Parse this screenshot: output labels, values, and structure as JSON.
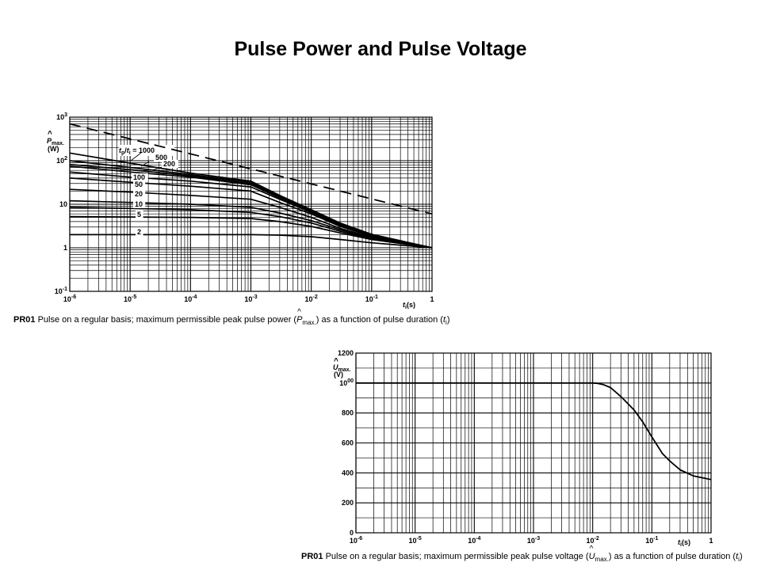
{
  "slide": {
    "title": "Pulse Power and Pulse Voltage"
  },
  "chart_data": [
    {
      "type": "line",
      "xscale": "log",
      "yscale": "log",
      "xlim": [
        1e-06,
        1
      ],
      "ylim": [
        0.1,
        1000
      ],
      "grid": true,
      "x_ticks": [
        "10-6",
        "10-5",
        "10-4",
        "10-3",
        "10-2",
        "10-1",
        "1"
      ],
      "y_ticks": [
        "10-1",
        "1",
        "10",
        "102",
        "103"
      ],
      "ylabel": {
        "symbol": "P",
        "sub": "max.",
        "unit": "(W)"
      },
      "xlabel": {
        "symbol": "t",
        "sub": "i",
        "unit": "(s)"
      },
      "ratio_label": {
        "a": "t",
        "a_sub": "p",
        "b": "t",
        "b_sub": "i",
        "eq": "= 1000"
      },
      "series": [
        {
          "name": "1000",
          "label": "",
          "dashed": false,
          "x": [
            1e-06,
            1e-05,
            0.0001,
            0.001,
            0.003,
            0.01,
            0.03,
            0.1,
            1
          ],
          "y": [
            75,
            55,
            42,
            28,
            14,
            6.5,
            3.3,
            1.9,
            1.0
          ]
        },
        {
          "name": "500",
          "label": "500",
          "dashed": false,
          "x": [
            1e-06,
            1e-05,
            0.0001,
            0.001,
            0.003,
            0.01,
            0.03,
            0.1,
            1
          ],
          "y": [
            82,
            62,
            45,
            30,
            15,
            7,
            3.5,
            1.95,
            1.0
          ]
        },
        {
          "name": "200",
          "label": "200",
          "dashed": false,
          "x": [
            1e-06,
            1e-05,
            0.0001,
            0.001,
            0.003,
            0.01,
            0.03,
            0.1,
            1
          ],
          "y": [
            100,
            70,
            48,
            32,
            15.5,
            7.2,
            3.6,
            2.0,
            1.0
          ]
        },
        {
          "name": "top",
          "label": "",
          "dashed": false,
          "x": [
            1e-06,
            1e-05,
            0.0001,
            0.001,
            0.003,
            0.01,
            0.03,
            0.1,
            1
          ],
          "y": [
            150,
            88,
            52,
            34,
            16,
            7.5,
            3.7,
            2.05,
            1.0
          ]
        },
        {
          "name": "100",
          "label": "100",
          "dashed": false,
          "x": [
            1e-06,
            1e-05,
            0.0001,
            0.001,
            0.003,
            0.01,
            0.03,
            0.1,
            1
          ],
          "y": [
            55,
            42,
            34,
            25,
            13,
            6.5,
            3.3,
            1.9,
            1.0
          ]
        },
        {
          "name": "50",
          "label": "50",
          "dashed": false,
          "x": [
            1e-06,
            1e-05,
            0.0001,
            0.001,
            0.003,
            0.01,
            0.03,
            0.1,
            1
          ],
          "y": [
            40,
            32,
            26,
            20,
            11,
            6,
            3.1,
            1.85,
            1.0
          ]
        },
        {
          "name": "20",
          "label": "20",
          "dashed": false,
          "x": [
            1e-06,
            1e-05,
            0.0001,
            0.001,
            0.003,
            0.01,
            0.03,
            0.1,
            1
          ],
          "y": [
            22,
            19,
            16,
            13,
            8.5,
            5,
            2.8,
            1.75,
            1.0
          ]
        },
        {
          "name": "10",
          "label": "10",
          "dashed": false,
          "x": [
            1e-06,
            1e-05,
            0.0001,
            0.001,
            0.003,
            0.01,
            0.03,
            0.1,
            1
          ],
          "y": [
            12,
            11,
            10,
            8.5,
            6.3,
            4.2,
            2.6,
            1.65,
            1.0
          ]
        },
        {
          "name": "10b",
          "label": "",
          "dashed": false,
          "x": [
            1e-06,
            1e-05,
            0.0001,
            0.001,
            0.003,
            0.01,
            0.03,
            0.1,
            1
          ],
          "y": [
            8.5,
            8,
            7.5,
            6.5,
            5.2,
            3.7,
            2.4,
            1.6,
            1.0
          ]
        },
        {
          "name": "5",
          "label": "5",
          "dashed": false,
          "x": [
            1e-06,
            1e-05,
            0.0001,
            0.001,
            0.003,
            0.01,
            0.03,
            0.1,
            1
          ],
          "y": [
            5.2,
            5.1,
            5.0,
            4.7,
            4.0,
            3.1,
            2.2,
            1.55,
            1.0
          ]
        },
        {
          "name": "2",
          "label": "2",
          "dashed": false,
          "x": [
            1e-06,
            1e-05,
            0.0001,
            0.001,
            0.003,
            0.01,
            0.03,
            0.1,
            1
          ],
          "y": [
            2.0,
            2.0,
            2.0,
            2.0,
            1.95,
            1.8,
            1.55,
            1.3,
            1.0
          ]
        },
        {
          "name": "limit",
          "label": "",
          "dashed": true,
          "x": [
            1e-06,
            1
          ],
          "y": [
            700,
            6
          ]
        }
      ],
      "caption": {
        "code": "PR01",
        "text_before": "Pulse on a regular basis; maximum permissible peak pulse power (",
        "sym": "P",
        "sub": "max.",
        "text_mid": ") as a function of pulse duration (",
        "t": "t",
        "t_sub": "i",
        "text_end": ")"
      }
    },
    {
      "type": "line",
      "xscale": "log",
      "xlim": [
        1e-06,
        1
      ],
      "ylim": [
        0,
        1200
      ],
      "grid": true,
      "x_ticks": [
        "10-6",
        "10-5",
        "10-4",
        "10-3",
        "10-2",
        "10-1",
        "1"
      ],
      "y_ticks": [
        "0",
        "200",
        "400",
        "600",
        "800",
        "1000",
        "1200"
      ],
      "ylabel": {
        "symbol": "U",
        "sub": "max.",
        "unit": "(V)"
      },
      "xlabel": {
        "symbol": "t",
        "sub": "i",
        "unit": "(s)"
      },
      "series": [
        {
          "name": "",
          "x": [
            1e-06,
            0.0001,
            0.01,
            0.012,
            0.015,
            0.02,
            0.03,
            0.05,
            0.07,
            0.1,
            0.15,
            0.2,
            0.3,
            0.5,
            1
          ],
          "y": [
            1000,
            1000,
            1000,
            998,
            990,
            970,
            910,
            820,
            740,
            640,
            530,
            480,
            420,
            380,
            355
          ]
        }
      ],
      "caption": {
        "code": "PR01",
        "text_before": "Pulse on a regular basis; maximum permissible peak pulse voltage (",
        "sym": "U",
        "sub": "max.",
        "text_mid": ") as a function of pulse duration (",
        "t": "t",
        "t_sub": "i",
        "text_end": ")"
      }
    }
  ]
}
